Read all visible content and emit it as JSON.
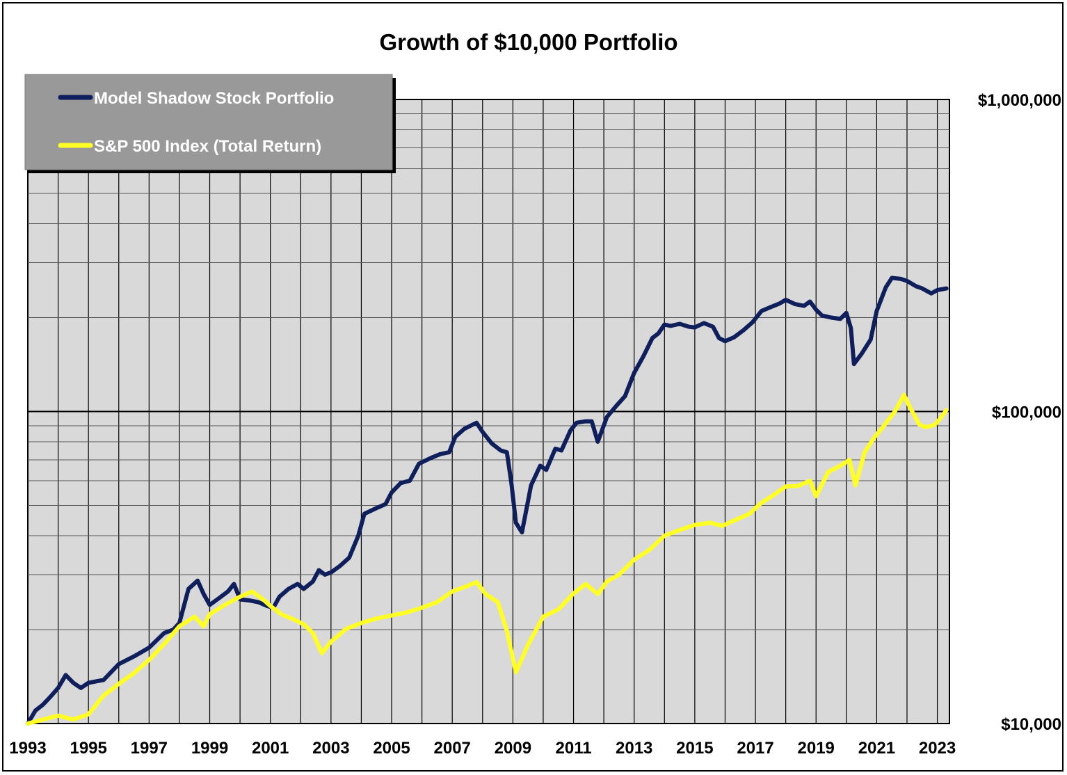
{
  "chart_data": {
    "type": "line",
    "title": "Growth of $10,000 Portfolio",
    "xlabel": "",
    "ylabel": "",
    "xlim": [
      1993,
      2023.4
    ],
    "ylim": [
      10000,
      1000000
    ],
    "yscale": "log",
    "grid": true,
    "legend_position": "top-left",
    "x_ticks": [
      "1993",
      "1995",
      "1997",
      "1999",
      "2001",
      "2003",
      "2005",
      "2007",
      "2009",
      "2011",
      "2013",
      "2015",
      "2017",
      "2019",
      "2021",
      "2023"
    ],
    "y_ticks": [
      {
        "value": 1000000,
        "label": "$1,000,000"
      },
      {
        "value": 100000,
        "label": "$100,000"
      },
      {
        "value": 10000,
        "label": "$10,000"
      }
    ],
    "series": [
      {
        "name": "Model Shadow Stock Portfolio",
        "color": "#0f1f5c",
        "points": [
          [
            1993.0,
            10000
          ],
          [
            1993.25,
            11000
          ],
          [
            1993.5,
            11500
          ],
          [
            1993.75,
            12200
          ],
          [
            1994.0,
            13000
          ],
          [
            1994.25,
            14300
          ],
          [
            1994.5,
            13500
          ],
          [
            1994.75,
            13000
          ],
          [
            1995.0,
            13500
          ],
          [
            1995.5,
            13800
          ],
          [
            1996.0,
            15500
          ],
          [
            1996.5,
            16400
          ],
          [
            1997.0,
            17500
          ],
          [
            1997.5,
            19500
          ],
          [
            1997.8,
            20000
          ],
          [
            1998.0,
            21000
          ],
          [
            1998.3,
            27000
          ],
          [
            1998.6,
            28700
          ],
          [
            1998.8,
            26000
          ],
          [
            1999.0,
            24000
          ],
          [
            1999.3,
            25200
          ],
          [
            1999.6,
            26500
          ],
          [
            1999.8,
            28000
          ],
          [
            2000.0,
            25000
          ],
          [
            2000.3,
            24800
          ],
          [
            2000.6,
            24500
          ],
          [
            2000.9,
            23800
          ],
          [
            2001.1,
            23500
          ],
          [
            2001.3,
            25500
          ],
          [
            2001.6,
            27000
          ],
          [
            2001.9,
            28000
          ],
          [
            2002.1,
            27000
          ],
          [
            2002.4,
            28500
          ],
          [
            2002.6,
            31000
          ],
          [
            2002.8,
            30000
          ],
          [
            2003.0,
            30500
          ],
          [
            2003.3,
            32000
          ],
          [
            2003.6,
            34000
          ],
          [
            2003.9,
            40000
          ],
          [
            2004.1,
            47000
          ],
          [
            2004.5,
            49000
          ],
          [
            2004.8,
            50500
          ],
          [
            2005.0,
            55000
          ],
          [
            2005.3,
            59000
          ],
          [
            2005.6,
            60000
          ],
          [
            2005.9,
            68000
          ],
          [
            2006.3,
            71000
          ],
          [
            2006.6,
            73000
          ],
          [
            2006.9,
            74000
          ],
          [
            2007.1,
            83000
          ],
          [
            2007.4,
            88000
          ],
          [
            2007.6,
            90000
          ],
          [
            2007.8,
            92000
          ],
          [
            2008.0,
            86000
          ],
          [
            2008.3,
            79000
          ],
          [
            2008.6,
            75000
          ],
          [
            2008.8,
            74000
          ],
          [
            2008.95,
            59000
          ],
          [
            2009.1,
            44000
          ],
          [
            2009.3,
            41000
          ],
          [
            2009.6,
            58000
          ],
          [
            2009.9,
            67000
          ],
          [
            2010.1,
            65000
          ],
          [
            2010.4,
            76000
          ],
          [
            2010.6,
            75000
          ],
          [
            2010.9,
            87000
          ],
          [
            2011.1,
            92000
          ],
          [
            2011.4,
            93000
          ],
          [
            2011.6,
            93000
          ],
          [
            2011.8,
            80000
          ],
          [
            2012.1,
            96000
          ],
          [
            2012.4,
            104000
          ],
          [
            2012.7,
            112000
          ],
          [
            2013.0,
            133000
          ],
          [
            2013.3,
            150000
          ],
          [
            2013.6,
            172000
          ],
          [
            2013.8,
            178000
          ],
          [
            2014.0,
            190000
          ],
          [
            2014.2,
            188000
          ],
          [
            2014.5,
            191000
          ],
          [
            2014.8,
            187000
          ],
          [
            2015.0,
            186000
          ],
          [
            2015.3,
            192000
          ],
          [
            2015.6,
            187000
          ],
          [
            2015.8,
            172000
          ],
          [
            2016.0,
            168000
          ],
          [
            2016.3,
            173000
          ],
          [
            2016.6,
            182000
          ],
          [
            2016.9,
            193000
          ],
          [
            2017.2,
            210000
          ],
          [
            2017.5,
            216000
          ],
          [
            2017.8,
            222000
          ],
          [
            2018.0,
            228000
          ],
          [
            2018.3,
            221000
          ],
          [
            2018.6,
            218000
          ],
          [
            2018.8,
            225000
          ],
          [
            2019.0,
            212000
          ],
          [
            2019.2,
            203000
          ],
          [
            2019.5,
            200000
          ],
          [
            2019.8,
            198000
          ],
          [
            2020.0,
            207000
          ],
          [
            2020.15,
            185000
          ],
          [
            2020.25,
            142000
          ],
          [
            2020.5,
            153000
          ],
          [
            2020.8,
            170000
          ],
          [
            2021.0,
            210000
          ],
          [
            2021.3,
            250000
          ],
          [
            2021.5,
            268000
          ],
          [
            2021.8,
            266000
          ],
          [
            2022.0,
            262000
          ],
          [
            2022.3,
            252000
          ],
          [
            2022.5,
            248000
          ],
          [
            2022.8,
            239000
          ],
          [
            2023.0,
            245000
          ],
          [
            2023.3,
            248000
          ]
        ]
      },
      {
        "name": "S&P 500 Index (Total Return)",
        "color": "#ffff26",
        "points": [
          [
            1993.0,
            10000
          ],
          [
            1993.5,
            10300
          ],
          [
            1994.0,
            10600
          ],
          [
            1994.5,
            10300
          ],
          [
            1995.0,
            10700
          ],
          [
            1995.5,
            12300
          ],
          [
            1996.0,
            13400
          ],
          [
            1996.5,
            14500
          ],
          [
            1997.0,
            16000
          ],
          [
            1997.5,
            18000
          ],
          [
            1998.0,
            20500
          ],
          [
            1998.5,
            22000
          ],
          [
            1998.8,
            20500
          ],
          [
            1999.0,
            22400
          ],
          [
            1999.5,
            24000
          ],
          [
            2000.0,
            25500
          ],
          [
            2000.4,
            26500
          ],
          [
            2000.8,
            24800
          ],
          [
            2001.0,
            23800
          ],
          [
            2001.4,
            22300
          ],
          [
            2001.8,
            21500
          ],
          [
            2002.1,
            20800
          ],
          [
            2002.4,
            19500
          ],
          [
            2002.7,
            16800
          ],
          [
            2003.0,
            18300
          ],
          [
            2003.5,
            20100
          ],
          [
            2004.0,
            21000
          ],
          [
            2004.5,
            21700
          ],
          [
            2005.0,
            22200
          ],
          [
            2005.5,
            22700
          ],
          [
            2006.0,
            23500
          ],
          [
            2006.5,
            24500
          ],
          [
            2007.0,
            26500
          ],
          [
            2007.5,
            27600
          ],
          [
            2007.8,
            28400
          ],
          [
            2008.1,
            26000
          ],
          [
            2008.5,
            24500
          ],
          [
            2008.8,
            19800
          ],
          [
            2009.1,
            14600
          ],
          [
            2009.5,
            17900
          ],
          [
            2010.0,
            22000
          ],
          [
            2010.5,
            23200
          ],
          [
            2011.0,
            26100
          ],
          [
            2011.4,
            28000
          ],
          [
            2011.8,
            26000
          ],
          [
            2012.1,
            28500
          ],
          [
            2012.5,
            30000
          ],
          [
            2013.0,
            33500
          ],
          [
            2013.5,
            36000
          ],
          [
            2014.0,
            40000
          ],
          [
            2014.5,
            41700
          ],
          [
            2015.0,
            43300
          ],
          [
            2015.5,
            44000
          ],
          [
            2015.9,
            43000
          ],
          [
            2016.3,
            44700
          ],
          [
            2016.8,
            47000
          ],
          [
            2017.2,
            51000
          ],
          [
            2017.6,
            54000
          ],
          [
            2018.0,
            57500
          ],
          [
            2018.4,
            57700
          ],
          [
            2018.8,
            60000
          ],
          [
            2019.0,
            53500
          ],
          [
            2019.4,
            64000
          ],
          [
            2019.8,
            67000
          ],
          [
            2020.1,
            70000
          ],
          [
            2020.3,
            58000
          ],
          [
            2020.6,
            74000
          ],
          [
            2020.9,
            82000
          ],
          [
            2021.2,
            89000
          ],
          [
            2021.6,
            100000
          ],
          [
            2021.9,
            113000
          ],
          [
            2022.1,
            103000
          ],
          [
            2022.4,
            91000
          ],
          [
            2022.6,
            89000
          ],
          [
            2022.9,
            90500
          ],
          [
            2023.1,
            95000
          ],
          [
            2023.3,
            101000
          ]
        ]
      }
    ]
  }
}
